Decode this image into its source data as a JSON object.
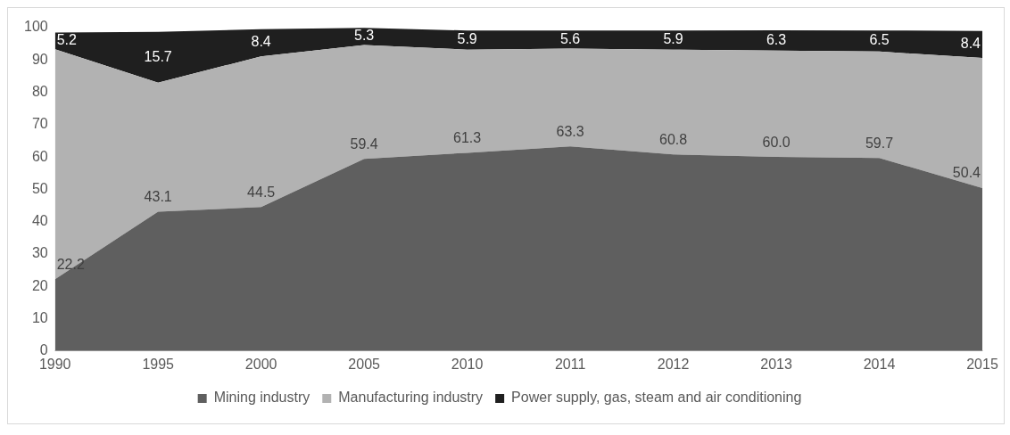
{
  "chart_data": {
    "type": "area",
    "stacked": true,
    "categories": [
      "1990",
      "1995",
      "2000",
      "2005",
      "2010",
      "2011",
      "2012",
      "2013",
      "2014",
      "2015"
    ],
    "series": [
      {
        "name": "Mining industry",
        "color": "#5f5f5f",
        "values": [
          22.2,
          43.1,
          44.5,
          59.4,
          61.3,
          63.3,
          60.8,
          60.0,
          59.7,
          50.4
        ],
        "value_labels": [
          "22.2",
          "43.1",
          "44.5",
          "59.4",
          "61.3",
          "63.3",
          "60.8",
          "60.0",
          "59.7",
          "50.4"
        ]
      },
      {
        "name": "Manufacturing industry",
        "color": "#b2b2b2",
        "values": [
          71.1,
          39.9,
          46.6,
          35.2,
          31.9,
          30.2,
          32.4,
          32.9,
          32.9,
          40.2
        ]
      },
      {
        "name": "Power supply, gas, steam and air conditioning",
        "color": "#1f1f1f",
        "values": [
          5.2,
          15.7,
          8.4,
          5.3,
          5.9,
          5.6,
          5.9,
          6.3,
          6.5,
          8.4
        ],
        "value_labels": [
          "5.2",
          "15.7",
          "8.4",
          "5.3",
          "5.9",
          "5.6",
          "5.9",
          "6.3",
          "6.5",
          "8.4"
        ]
      }
    ],
    "ylim": [
      0,
      100
    ],
    "yticks": [
      0,
      10,
      20,
      30,
      40,
      50,
      60,
      70,
      80,
      90,
      100
    ],
    "legend": "bottom"
  }
}
